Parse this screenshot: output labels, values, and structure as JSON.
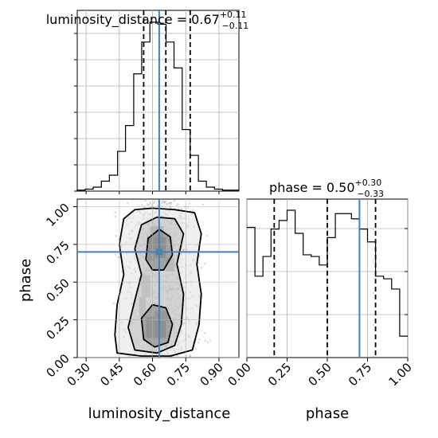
{
  "chart_data": [
    {
      "type": "histogram",
      "panel": "luminosity_distance-1d",
      "title": {
        "prefix": "luminosity_distance = 0.67",
        "plus": "+0.11",
        "minus": "−0.11"
      },
      "xlim": [
        0.26,
        0.99
      ],
      "bins_x": [
        0.26,
        0.296,
        0.332,
        0.369,
        0.405,
        0.442,
        0.478,
        0.515,
        0.551,
        0.588,
        0.624,
        0.661,
        0.697,
        0.734,
        0.77,
        0.807,
        0.843,
        0.88,
        0.916,
        0.953,
        0.99
      ],
      "counts": [
        1,
        2,
        4,
        10,
        16,
        40,
        66,
        118,
        150,
        170,
        168,
        150,
        124,
        62,
        36,
        10,
        4,
        2,
        1,
        1
      ],
      "quantile_lines": [
        0.56,
        0.66,
        0.77
      ],
      "truth": 0.63,
      "grid": true
    },
    {
      "type": "histogram",
      "panel": "phase-1d",
      "title": {
        "prefix": "phase = 0.50",
        "plus": "+0.30",
        "minus": "−0.33"
      },
      "xlim": [
        0.0,
        1.0
      ],
      "bins_x": [
        0.0,
        0.05,
        0.1,
        0.15,
        0.2,
        0.25,
        0.3,
        0.35,
        0.4,
        0.45,
        0.5,
        0.55,
        0.6,
        0.65,
        0.7,
        0.75,
        0.8,
        0.85,
        0.9,
        0.95,
        1.0
      ],
      "counts": [
        152,
        95,
        118,
        150,
        160,
        172,
        145,
        120,
        118,
        108,
        140,
        168,
        168,
        162,
        150,
        135,
        95,
        92,
        80,
        25
      ],
      "ylim": [
        0,
        185
      ],
      "quantile_lines": [
        0.17,
        0.5,
        0.8
      ],
      "truth": 0.7,
      "grid": true,
      "xticks": [
        "0.00",
        "0.25",
        "0.50",
        "0.75",
        "1.00"
      ],
      "xlabel": "phase"
    },
    {
      "type": "heatmap",
      "panel": "luminosity_distance-vs-phase-2d",
      "xlabel": "luminosity_distance",
      "ylabel": "phase",
      "xlim": [
        0.26,
        0.99
      ],
      "ylim": [
        0.0,
        1.05
      ],
      "xticks": [
        "0.30",
        "0.45",
        "0.60",
        "0.75",
        "0.90"
      ],
      "yticks": [
        "0.00",
        "0.25",
        "0.50",
        "0.75",
        "1.00"
      ],
      "truth": {
        "x": 0.63,
        "y": 0.7
      },
      "contours": [
        {
          "level": "outer",
          "points": [
            [
              0.44,
              0.03
            ],
            [
              0.43,
              0.15
            ],
            [
              0.44,
              0.35
            ],
            [
              0.47,
              0.55
            ],
            [
              0.45,
              0.75
            ],
            [
              0.47,
              0.92
            ],
            [
              0.52,
              0.98
            ],
            [
              0.6,
              0.99
            ],
            [
              0.7,
              0.98
            ],
            [
              0.79,
              0.96
            ],
            [
              0.82,
              0.82
            ],
            [
              0.8,
              0.62
            ],
            [
              0.82,
              0.42
            ],
            [
              0.81,
              0.22
            ],
            [
              0.78,
              0.05
            ],
            [
              0.68,
              0.01
            ],
            [
              0.55,
              0.01
            ]
          ]
        },
        {
          "level": "middle",
          "points": [
            [
              0.52,
              0.05
            ],
            [
              0.49,
              0.2
            ],
            [
              0.52,
              0.38
            ],
            [
              0.55,
              0.55
            ],
            [
              0.52,
              0.72
            ],
            [
              0.55,
              0.88
            ],
            [
              0.62,
              0.93
            ],
            [
              0.7,
              0.92
            ],
            [
              0.74,
              0.82
            ],
            [
              0.71,
              0.62
            ],
            [
              0.74,
              0.42
            ],
            [
              0.73,
              0.22
            ],
            [
              0.7,
              0.08
            ],
            [
              0.62,
              0.03
            ]
          ]
        },
        {
          "level": "inner-top",
          "points": [
            [
              0.57,
              0.65
            ],
            [
              0.58,
              0.79
            ],
            [
              0.63,
              0.85
            ],
            [
              0.68,
              0.8
            ],
            [
              0.69,
              0.68
            ],
            [
              0.65,
              0.58
            ],
            [
              0.6,
              0.58
            ]
          ]
        },
        {
          "level": "inner-bottom",
          "points": [
            [
              0.56,
              0.12
            ],
            [
              0.55,
              0.26
            ],
            [
              0.6,
              0.35
            ],
            [
              0.66,
              0.33
            ],
            [
              0.69,
              0.22
            ],
            [
              0.67,
              0.1
            ],
            [
              0.61,
              0.07
            ]
          ]
        }
      ],
      "density_cells": [
        {
          "x": [
            0.575,
            0.61
          ],
          "y": [
            0.74,
            0.8
          ],
          "v": 0.9
        },
        {
          "x": [
            0.61,
            0.66
          ],
          "y": [
            0.66,
            0.8
          ],
          "v": 1.0
        },
        {
          "x": [
            0.58,
            0.61
          ],
          "y": [
            0.64,
            0.74
          ],
          "v": 0.7
        },
        {
          "x": [
            0.59,
            0.65
          ],
          "y": [
            0.8,
            0.87
          ],
          "v": 0.55
        },
        {
          "x": [
            0.61,
            0.66
          ],
          "y": [
            0.13,
            0.24
          ],
          "v": 1.0
        },
        {
          "x": [
            0.57,
            0.61
          ],
          "y": [
            0.13,
            0.27
          ],
          "v": 0.75
        },
        {
          "x": [
            0.61,
            0.67
          ],
          "y": [
            0.24,
            0.31
          ],
          "v": 0.65
        },
        {
          "x": [
            0.54,
            0.57
          ],
          "y": [
            0.27,
            0.4
          ],
          "v": 0.35
        },
        {
          "x": [
            0.66,
            0.7
          ],
          "y": [
            0.57,
            0.66
          ],
          "v": 0.45
        },
        {
          "x": [
            0.55,
            0.59
          ],
          "y": [
            0.4,
            0.55
          ],
          "v": 0.3
        }
      ]
    }
  ]
}
